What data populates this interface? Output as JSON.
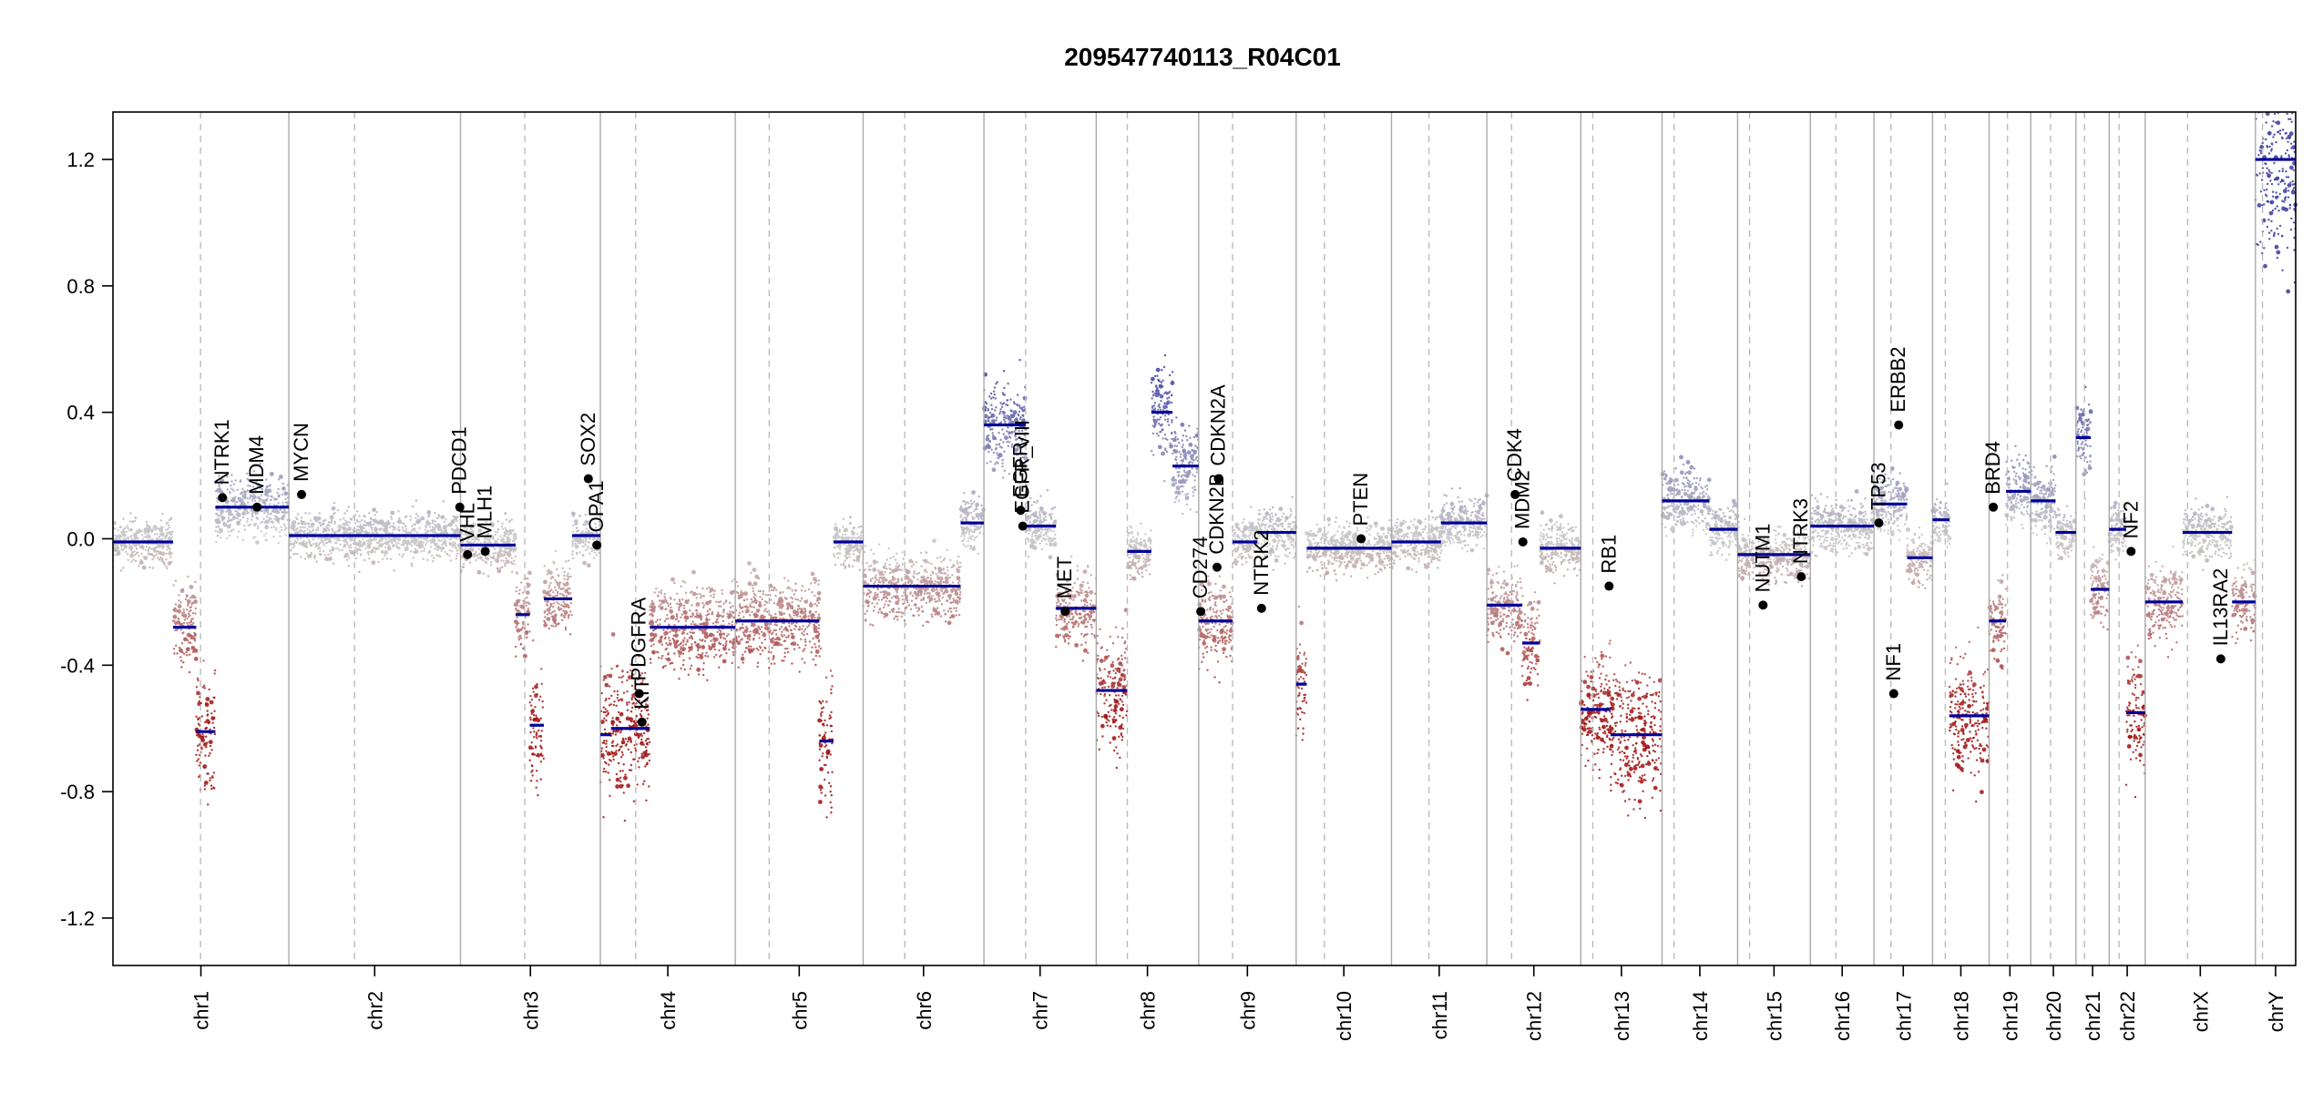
{
  "chart_data": {
    "type": "scatter",
    "title": "209547740113_R04C01",
    "xlabel": "",
    "ylabel": "",
    "ylim": [
      -1.35,
      1.35
    ],
    "y_ticks": [
      -1.2,
      -0.8,
      -0.4,
      0.0,
      0.4,
      0.8,
      1.2
    ],
    "y_tick_labels": [
      "-1.2",
      "-0.8",
      "-0.4",
      "0.0",
      "0.4",
      "0.8",
      "1.2"
    ],
    "grid": false,
    "point_colors": {
      "gain": "#3a3aa0",
      "neutral": "#c8c8c8",
      "loss": "#a01010"
    },
    "segment_color": "#000099",
    "chromosomes": [
      {
        "name": "chr1",
        "start": 0,
        "end": 249,
        "centromere": 124
      },
      {
        "name": "chr2",
        "start": 249,
        "end": 492,
        "centromere": 342
      },
      {
        "name": "chr3",
        "start": 492,
        "end": 690,
        "centromere": 583
      },
      {
        "name": "chr4",
        "start": 690,
        "end": 881,
        "centromere": 740
      },
      {
        "name": "chr5",
        "start": 881,
        "end": 1062,
        "centromere": 929
      },
      {
        "name": "chr6",
        "start": 1062,
        "end": 1233,
        "centromere": 1121
      },
      {
        "name": "chr7",
        "start": 1233,
        "end": 1392,
        "centromere": 1292
      },
      {
        "name": "chr8",
        "start": 1392,
        "end": 1537,
        "centromere": 1436
      },
      {
        "name": "chr9",
        "start": 1537,
        "end": 1675,
        "centromere": 1585
      },
      {
        "name": "chr10",
        "start": 1675,
        "end": 1810,
        "centromere": 1715
      },
      {
        "name": "chr11",
        "start": 1810,
        "end": 1945,
        "centromere": 1863
      },
      {
        "name": "chr12",
        "start": 1945,
        "end": 2078,
        "centromere": 1980
      },
      {
        "name": "chr13",
        "start": 2078,
        "end": 2193,
        "centromere": 2095
      },
      {
        "name": "chr14",
        "start": 2193,
        "end": 2300,
        "centromere": 2210
      },
      {
        "name": "chr15",
        "start": 2300,
        "end": 2403,
        "centromere": 2317
      },
      {
        "name": "chr16",
        "start": 2403,
        "end": 2493,
        "centromere": 2439
      },
      {
        "name": "chr17",
        "start": 2493,
        "end": 2576,
        "centromere": 2517
      },
      {
        "name": "chr18",
        "start": 2576,
        "end": 2656,
        "centromere": 2594
      },
      {
        "name": "chr19",
        "start": 2656,
        "end": 2715,
        "centromere": 2682
      },
      {
        "name": "chr20",
        "start": 2715,
        "end": 2779,
        "centromere": 2743
      },
      {
        "name": "chr21",
        "start": 2779,
        "end": 2826,
        "centromere": 2791
      },
      {
        "name": "chr22",
        "start": 2826,
        "end": 2877,
        "centromere": 2840
      },
      {
        "name": "chrX",
        "start": 2877,
        "end": 3033,
        "centromere": 2937
      },
      {
        "name": "chrY",
        "start": 3033,
        "end": 3090,
        "centromere": 3043
      }
    ],
    "segments": [
      {
        "x0": 0,
        "x1": 85,
        "y": -0.01
      },
      {
        "x0": 85,
        "x1": 118,
        "y": -0.28
      },
      {
        "x0": 118,
        "x1": 145,
        "y": -0.61
      },
      {
        "x0": 145,
        "x1": 249,
        "y": 0.1
      },
      {
        "x0": 249,
        "x1": 492,
        "y": 0.01
      },
      {
        "x0": 492,
        "x1": 570,
        "y": -0.02
      },
      {
        "x0": 570,
        "x1": 590,
        "y": -0.24
      },
      {
        "x0": 590,
        "x1": 610,
        "y": -0.59
      },
      {
        "x0": 610,
        "x1": 650,
        "y": -0.19
      },
      {
        "x0": 650,
        "x1": 690,
        "y": 0.01
      },
      {
        "x0": 690,
        "x1": 705,
        "y": -0.62
      },
      {
        "x0": 705,
        "x1": 760,
        "y": -0.6
      },
      {
        "x0": 760,
        "x1": 881,
        "y": -0.28
      },
      {
        "x0": 881,
        "x1": 930,
        "y": -0.26
      },
      {
        "x0": 930,
        "x1": 1000,
        "y": -0.26
      },
      {
        "x0": 1000,
        "x1": 1020,
        "y": -0.64
      },
      {
        "x0": 1020,
        "x1": 1062,
        "y": -0.01
      },
      {
        "x0": 1062,
        "x1": 1200,
        "y": -0.15
      },
      {
        "x0": 1200,
        "x1": 1233,
        "y": 0.05
      },
      {
        "x0": 1233,
        "x1": 1292,
        "y": 0.36
      },
      {
        "x0": 1292,
        "x1": 1335,
        "y": 0.04
      },
      {
        "x0": 1335,
        "x1": 1392,
        "y": -0.22
      },
      {
        "x0": 1392,
        "x1": 1436,
        "y": -0.48
      },
      {
        "x0": 1436,
        "x1": 1470,
        "y": -0.04
      },
      {
        "x0": 1470,
        "x1": 1500,
        "y": 0.4
      },
      {
        "x0": 1500,
        "x1": 1537,
        "y": 0.23
      },
      {
        "x0": 1537,
        "x1": 1585,
        "y": -0.26
      },
      {
        "x0": 1585,
        "x1": 1620,
        "y": -0.01
      },
      {
        "x0": 1620,
        "x1": 1675,
        "y": 0.02
      },
      {
        "x0": 1675,
        "x1": 1690,
        "y": -0.46
      },
      {
        "x0": 1690,
        "x1": 1810,
        "y": -0.03
      },
      {
        "x0": 1810,
        "x1": 1880,
        "y": -0.01
      },
      {
        "x0": 1880,
        "x1": 1945,
        "y": 0.05
      },
      {
        "x0": 1945,
        "x1": 1995,
        "y": -0.21
      },
      {
        "x0": 1995,
        "x1": 2020,
        "y": -0.33
      },
      {
        "x0": 2020,
        "x1": 2078,
        "y": -0.03
      },
      {
        "x0": 2078,
        "x1": 2120,
        "y": -0.54
      },
      {
        "x0": 2120,
        "x1": 2193,
        "y": -0.62
      },
      {
        "x0": 2193,
        "x1": 2260,
        "y": 0.12
      },
      {
        "x0": 2260,
        "x1": 2300,
        "y": 0.03
      },
      {
        "x0": 2300,
        "x1": 2403,
        "y": -0.05
      },
      {
        "x0": 2403,
        "x1": 2493,
        "y": 0.04
      },
      {
        "x0": 2493,
        "x1": 2540,
        "y": 0.11
      },
      {
        "x0": 2540,
        "x1": 2576,
        "y": -0.06
      },
      {
        "x0": 2576,
        "x1": 2600,
        "y": 0.06
      },
      {
        "x0": 2600,
        "x1": 2656,
        "y": -0.56
      },
      {
        "x0": 2656,
        "x1": 2680,
        "y": -0.26
      },
      {
        "x0": 2680,
        "x1": 2715,
        "y": 0.15
      },
      {
        "x0": 2715,
        "x1": 2750,
        "y": 0.12
      },
      {
        "x0": 2750,
        "x1": 2779,
        "y": 0.02
      },
      {
        "x0": 2779,
        "x1": 2800,
        "y": 0.32
      },
      {
        "x0": 2800,
        "x1": 2826,
        "y": -0.16
      },
      {
        "x0": 2826,
        "x1": 2850,
        "y": 0.03
      },
      {
        "x0": 2850,
        "x1": 2877,
        "y": -0.55
      },
      {
        "x0": 2877,
        "x1": 2930,
        "y": -0.2
      },
      {
        "x0": 2930,
        "x1": 3000,
        "y": 0.02
      },
      {
        "x0": 3000,
        "x1": 3033,
        "y": -0.2
      },
      {
        "x0": 3033,
        "x1": 3090,
        "y": 1.2
      }
    ],
    "genes": [
      {
        "name": "NTRK1",
        "x": 155,
        "y": 0.13
      },
      {
        "name": "MDM4",
        "x": 204,
        "y": 0.1
      },
      {
        "name": "MYCN",
        "x": 267,
        "y": 0.14
      },
      {
        "name": "PDCD1",
        "x": 491,
        "y": 0.1
      },
      {
        "name": "VHL",
        "x": 502,
        "y": -0.05
      },
      {
        "name": "MLH1",
        "x": 527,
        "y": -0.04
      },
      {
        "name": "SOX2",
        "x": 673,
        "y": 0.19
      },
      {
        "name": "OPA1",
        "x": 685,
        "y": -0.02
      },
      {
        "name": "PDGFRA",
        "x": 745,
        "y": -0.49
      },
      {
        "name": "KIT",
        "x": 749,
        "y": -0.58
      },
      {
        "name": "EGFR",
        "x": 1285,
        "y": 0.09
      },
      {
        "name": "EGFR_vIII",
        "x": 1288,
        "y": 0.04
      },
      {
        "name": "MET",
        "x": 1348,
        "y": -0.23
      },
      {
        "name": "CDKN2A",
        "x": 1565,
        "y": 0.19
      },
      {
        "name": "CDKN2B",
        "x": 1563,
        "y": -0.09
      },
      {
        "name": "CD274",
        "x": 1540,
        "y": -0.23
      },
      {
        "name": "NTRK2",
        "x": 1626,
        "y": -0.22
      },
      {
        "name": "PTEN",
        "x": 1767,
        "y": 0.0
      },
      {
        "name": "CDK4",
        "x": 1985,
        "y": 0.14
      },
      {
        "name": "MDM2",
        "x": 1996,
        "y": -0.01
      },
      {
        "name": "RB1",
        "x": 2118,
        "y": -0.15
      },
      {
        "name": "NUTM1",
        "x": 2336,
        "y": -0.21
      },
      {
        "name": "NTRK3",
        "x": 2390,
        "y": -0.12
      },
      {
        "name": "TP53",
        "x": 2500,
        "y": 0.05
      },
      {
        "name": "ERBB2",
        "x": 2528,
        "y": 0.36
      },
      {
        "name": "NF1",
        "x": 2521,
        "y": -0.49
      },
      {
        "name": "BRD4",
        "x": 2662,
        "y": 0.1
      },
      {
        "name": "NF2",
        "x": 2857,
        "y": -0.04
      },
      {
        "name": "IL13RA2",
        "x": 2984,
        "y": -0.38
      }
    ]
  }
}
